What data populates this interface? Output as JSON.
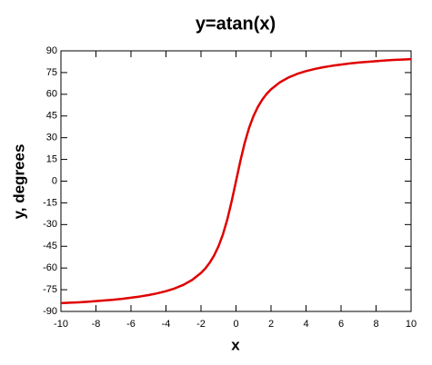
{
  "chart_data": {
    "type": "line",
    "title": "y=atan(x)",
    "xlabel": "x",
    "ylabel": "y, degrees",
    "x": [
      -10,
      -9.5,
      -9,
      -8.5,
      -8,
      -7.5,
      -7,
      -6.5,
      -6,
      -5.5,
      -5,
      -4.5,
      -4,
      -3.5,
      -3,
      -2.5,
      -2,
      -1.75,
      -1.5,
      -1.25,
      -1,
      -0.75,
      -0.5,
      -0.25,
      0,
      0.25,
      0.5,
      0.75,
      1,
      1.25,
      1.5,
      1.75,
      2,
      2.5,
      3,
      3.5,
      4,
      4.5,
      5,
      5.5,
      6,
      6.5,
      7,
      7.5,
      8,
      8.5,
      9,
      9.5,
      10
    ],
    "series": [
      {
        "name": "atan(x)",
        "color": "#e00000",
        "values": [
          -84.3,
          -84.0,
          -83.7,
          -83.3,
          -82.9,
          -82.4,
          -81.9,
          -81.3,
          -80.5,
          -79.7,
          -78.7,
          -77.5,
          -76.0,
          -74.1,
          -71.6,
          -68.2,
          -63.4,
          -60.3,
          -56.3,
          -51.3,
          -45,
          -36.9,
          -26.6,
          -14.0,
          0,
          14.0,
          26.6,
          36.9,
          45,
          51.3,
          56.3,
          60.3,
          63.4,
          68.2,
          71.6,
          74.1,
          76.0,
          77.5,
          78.7,
          79.7,
          80.5,
          81.3,
          81.9,
          82.4,
          82.9,
          83.3,
          83.7,
          84.0,
          84.3
        ]
      }
    ],
    "xlim": [
      -10,
      10
    ],
    "xticks": [
      -10,
      -8,
      -6,
      -4,
      -2,
      0,
      2,
      4,
      6,
      8,
      10
    ],
    "ylim": [
      -90,
      90
    ],
    "yticks": [
      -90,
      -75,
      -60,
      -45,
      -30,
      -15,
      0,
      15,
      30,
      45,
      60,
      75,
      90
    ],
    "grid": false
  }
}
